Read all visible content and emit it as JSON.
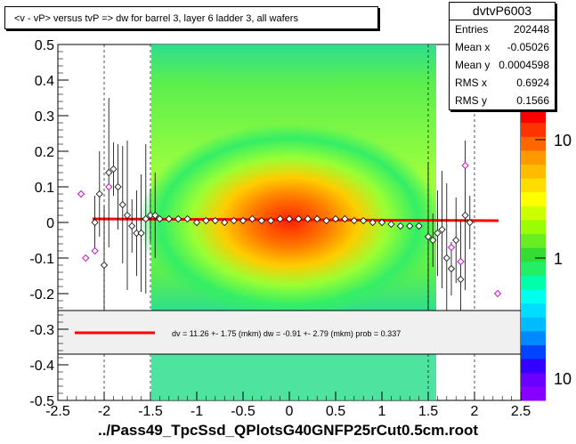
{
  "title": "<v - vP>       versus  tvP =>  dw for barrel 3, layer 6 ladder 3, all wafers",
  "stats": {
    "name": "dvtvP6003",
    "rows": [
      {
        "label": "Entries",
        "value": "202448"
      },
      {
        "label": "Mean x",
        "value": "-0.05026"
      },
      {
        "label": "Mean y",
        "value": "0.0004598"
      },
      {
        "label": "RMS x",
        "value": "0.6924"
      },
      {
        "label": "RMS y",
        "value": "0.1566"
      }
    ]
  },
  "fit_legend": "dv =   11.26 +-  1.75 (mkm) dw =   -0.91 +-  2.79 (mkm) prob = 0.337",
  "x_axis_title": "../Pass49_TpcSsd_QPlotsG40GNFP25rCut0.5cm.root",
  "colors": {
    "fit_line": "#ff0000",
    "frame": "#000000"
  },
  "chart_data": {
    "type": "heatmap",
    "xlim": [
      -2.5,
      2.5
    ],
    "ylim": [
      -0.5,
      0.5
    ],
    "x_ticks": [
      "-2.5",
      "-2",
      "-1.5",
      "-1",
      "-0.5",
      "0",
      "0.5",
      "1",
      "1.5",
      "2",
      "2.5"
    ],
    "y_ticks": [
      "-0.5",
      "-0.4",
      "-0.3",
      "-0.2",
      "-0.1",
      "0",
      "0.1",
      "0.2",
      "0.3",
      "0.4",
      "0.5"
    ],
    "z_ticks": [
      "1",
      "10"
    ],
    "z_scale": "log",
    "profile_points": {
      "x": [
        -2.1,
        -2.05,
        -2.0,
        -1.95,
        -1.9,
        -1.85,
        -1.8,
        -1.75,
        -1.7,
        -1.65,
        -1.6,
        -1.55,
        -1.5,
        -1.45,
        -1.4,
        -1.3,
        -1.2,
        -1.1,
        -1.0,
        -0.9,
        -0.8,
        -0.7,
        -0.6,
        -0.5,
        -0.4,
        -0.3,
        -0.2,
        -0.1,
        0.0,
        0.1,
        0.2,
        0.3,
        0.4,
        0.5,
        0.6,
        0.7,
        0.8,
        0.9,
        1.0,
        1.1,
        1.2,
        1.3,
        1.4,
        1.5,
        1.55,
        1.6,
        1.65,
        1.7,
        1.75,
        1.8,
        1.85,
        1.9,
        1.95
      ],
      "y": [
        0.0,
        0.08,
        -0.12,
        0.14,
        0.15,
        0.1,
        0.05,
        0.02,
        -0.01,
        -0.03,
        -0.03,
        0.01,
        0.02,
        0.02,
        0.01,
        0.01,
        0.01,
        0.01,
        0.0,
        0.005,
        0.005,
        0.0,
        0.005,
        0.005,
        0.01,
        0.005,
        0.005,
        0.01,
        0.01,
        0.01,
        0.01,
        0.01,
        0.005,
        0.01,
        0.01,
        0.005,
        0.005,
        0.0,
        0.0,
        -0.005,
        -0.01,
        -0.01,
        -0.01,
        -0.04,
        -0.05,
        -0.03,
        -0.02,
        -0.1,
        -0.13,
        -0.05,
        -0.16,
        0.02,
        0.0
      ]
    },
    "fit": {
      "intercept_um": 11.26,
      "slope_um": -0.91,
      "prob": 0.337
    }
  }
}
